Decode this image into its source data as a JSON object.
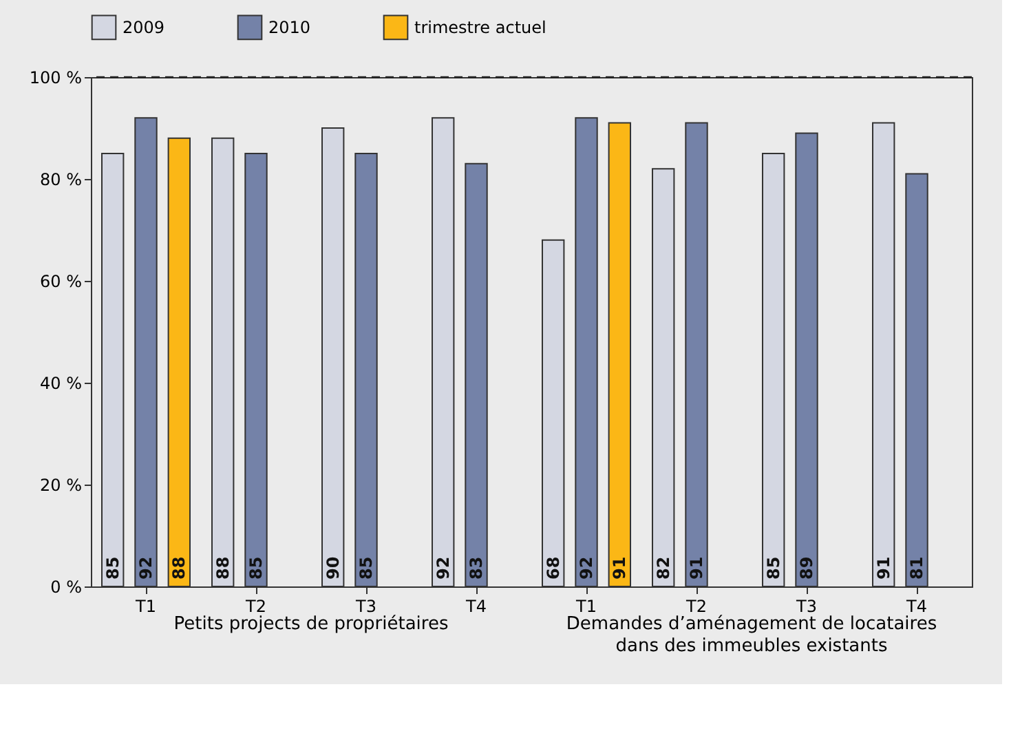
{
  "chart_data": {
    "type": "bar",
    "categories": [
      "T1",
      "T2",
      "T3",
      "T4",
      "T1",
      "T2",
      "T3",
      "T4"
    ],
    "series": [
      {
        "name": "2009",
        "color": "#d4d7e2",
        "values": [
          85,
          88,
          90,
          92,
          68,
          82,
          85,
          91
        ]
      },
      {
        "name": "2010",
        "color": "#7482a8",
        "values": [
          92,
          85,
          85,
          83,
          92,
          91,
          89,
          81
        ]
      },
      {
        "name": "trimestre actuel",
        "color": "#fbb716",
        "values": [
          88,
          null,
          null,
          null,
          91,
          null,
          null,
          null
        ]
      }
    ],
    "ylim": [
      0,
      100
    ],
    "yticks": [
      {
        "value": 0,
        "label": "0 %"
      },
      {
        "value": 20,
        "label": "20 %"
      },
      {
        "value": 40,
        "label": "40 %"
      },
      {
        "value": 60,
        "label": "60 %"
      },
      {
        "value": 80,
        "label": "80 %"
      },
      {
        "value": 100,
        "label": "100 %"
      }
    ],
    "ref_lines": [
      {
        "axis": "y",
        "value": 100,
        "line_style": "dashed",
        "color": "#222222"
      }
    ],
    "data_labels": true,
    "legend": "top",
    "grid": false,
    "annotations": [
      "Petits projects de propriétaires",
      "Demandes d’aménagement de locataires dans des immeubles existants"
    ]
  }
}
